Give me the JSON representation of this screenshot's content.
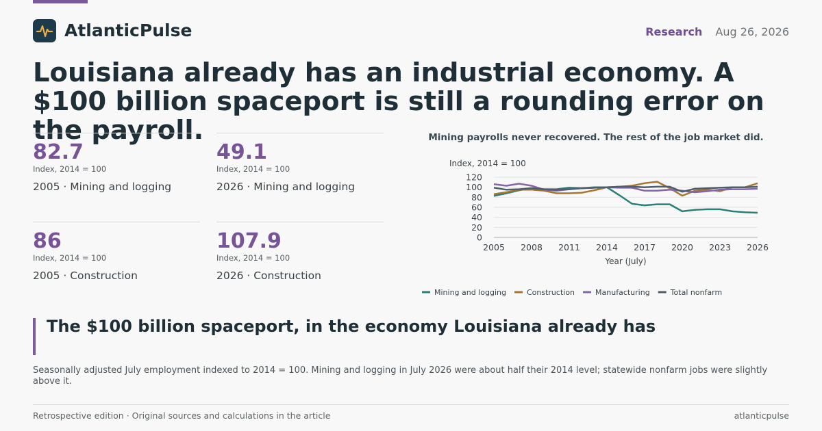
{
  "brand": {
    "name": "AtlanticPulse",
    "logo_icon": "pulse-icon"
  },
  "header": {
    "section": "Research",
    "date": "Aug 26, 2026"
  },
  "headline": "Louisiana already has an industrial economy. A $100 billion spaceport is still a rounding error on the payroll.",
  "stats": [
    {
      "value": "82.7",
      "note": "Index, 2014 = 100",
      "label": "2005 · Mining and logging"
    },
    {
      "value": "49.1",
      "note": "Index, 2014 = 100",
      "label": "2026 · Mining and logging"
    },
    {
      "value": "86",
      "note": "Index, 2014 = 100",
      "label": "2005 · Construction"
    },
    {
      "value": "107.9",
      "note": "Index, 2014 = 100",
      "label": "2026 · Construction"
    }
  ],
  "chart_data": {
    "type": "line",
    "title": "Mining payrolls never recovered. The rest of the job market did.",
    "ylabel": "Index, 2014 = 100",
    "xlabel": "Year (July)",
    "x": [
      2005,
      2006,
      2007,
      2008,
      2009,
      2010,
      2011,
      2012,
      2013,
      2014,
      2015,
      2016,
      2017,
      2018,
      2019,
      2020,
      2021,
      2022,
      2023,
      2024,
      2025,
      2026
    ],
    "xticks": [
      2005,
      2008,
      2011,
      2014,
      2017,
      2020,
      2023,
      2026
    ],
    "yticks": [
      0,
      20,
      40,
      60,
      80,
      100,
      120
    ],
    "xlim": [
      2005,
      2026
    ],
    "ylim": [
      0,
      120
    ],
    "grid": "horizontal",
    "legend_position": "bottom",
    "series": [
      {
        "name": "Mining and logging",
        "color": "#2a7f78",
        "values": [
          82.7,
          88,
          94,
          98,
          96,
          96,
          99,
          98,
          100,
          100,
          84,
          67,
          64,
          66,
          66,
          52,
          55,
          56,
          56,
          52,
          50,
          49.1
        ]
      },
      {
        "name": "Construction",
        "color": "#a8752f",
        "values": [
          86,
          90,
          95,
          95,
          93,
          88,
          88,
          89,
          94,
          100,
          101,
          103,
          108,
          111,
          98,
          83,
          93,
          95,
          92,
          100,
          100,
          107.9
        ]
      },
      {
        "name": "Manufacturing",
        "color": "#8465a8",
        "values": [
          106,
          103,
          107,
          103,
          95,
          93,
          96,
          98,
          99,
          100,
          99,
          99,
          93,
          93,
          95,
          93,
          90,
          92,
          95,
          96,
          96,
          97
        ]
      },
      {
        "name": "Total nonfarm",
        "color": "#4f5e6b",
        "values": [
          99,
          95,
          96,
          98,
          96,
          95,
          96,
          98,
          99,
          100,
          101,
          101,
          100,
          101,
          101,
          91,
          97,
          98,
          99,
          100,
          100,
          101
        ]
      }
    ]
  },
  "subhead": "The $100 billion spaceport, in the economy Louisiana already has",
  "caption": "Seasonally adjusted July employment indexed to 2014 = 100. Mining and logging in July 2026 were about half their 2014 level; statewide nonfarm jobs were slightly above it.",
  "footer": {
    "left": "Retrospective edition · Original sources and calculations in the article",
    "right": "atlanticpulse"
  }
}
